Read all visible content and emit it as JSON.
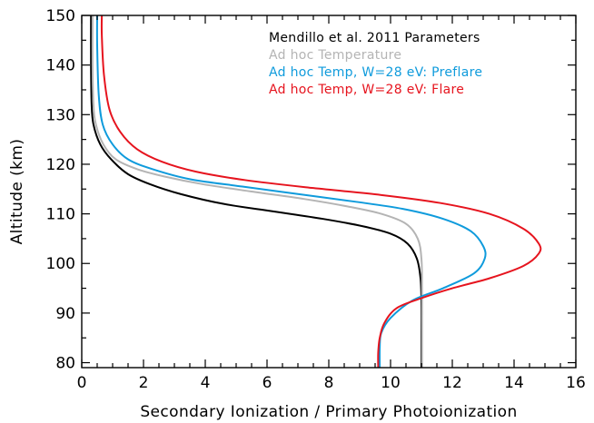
{
  "chart_data": {
    "type": "line",
    "xlabel": "Secondary Ionization / Primary Photoionization",
    "ylabel": "Altitude (km)",
    "xlim": [
      0,
      16
    ],
    "ylim": [
      79,
      150
    ],
    "xticks": [
      0,
      2,
      4,
      6,
      8,
      10,
      12,
      14,
      16
    ],
    "yticks": [
      80,
      90,
      100,
      110,
      120,
      130,
      140,
      150
    ],
    "legend_placement": "top-right",
    "series": [
      {
        "name": "Mendillo et al. 2011 Parameters",
        "color": "#000000",
        "points": [
          [
            0.3,
            150
          ],
          [
            0.3,
            140
          ],
          [
            0.32,
            132
          ],
          [
            0.38,
            128
          ],
          [
            0.6,
            124
          ],
          [
            0.95,
            121
          ],
          [
            1.5,
            118
          ],
          [
            2.2,
            116
          ],
          [
            3.2,
            114
          ],
          [
            4.6,
            112
          ],
          [
            6.2,
            110.5
          ],
          [
            7.8,
            109
          ],
          [
            9.1,
            107.5
          ],
          [
            10.0,
            106
          ],
          [
            10.55,
            104
          ],
          [
            10.85,
            101
          ],
          [
            10.97,
            97
          ],
          [
            11.0,
            92
          ],
          [
            11.0,
            85
          ],
          [
            11.0,
            79
          ]
        ]
      },
      {
        "name": "Ad hoc Temperature",
        "color": "#b4b4b4",
        "points": [
          [
            0.35,
            150
          ],
          [
            0.35,
            140
          ],
          [
            0.38,
            132
          ],
          [
            0.46,
            128
          ],
          [
            0.7,
            124
          ],
          [
            1.1,
            121
          ],
          [
            1.8,
            119
          ],
          [
            2.7,
            117.5
          ],
          [
            3.9,
            116
          ],
          [
            5.5,
            114.5
          ],
          [
            7.2,
            113
          ],
          [
            8.6,
            111.5
          ],
          [
            9.7,
            110
          ],
          [
            10.5,
            108
          ],
          [
            10.88,
            105
          ],
          [
            11.0,
            101
          ],
          [
            11.02,
            95
          ],
          [
            11.02,
            85
          ],
          [
            11.02,
            79
          ]
        ]
      },
      {
        "name": "Ad hoc Temp, W=28 eV: Preflare",
        "color": "#0f9bdc",
        "points": [
          [
            0.5,
            150
          ],
          [
            0.5,
            144
          ],
          [
            0.55,
            134
          ],
          [
            0.68,
            128
          ],
          [
            1.0,
            124
          ],
          [
            1.5,
            121
          ],
          [
            2.3,
            119
          ],
          [
            3.5,
            117
          ],
          [
            5.2,
            115.5
          ],
          [
            7.0,
            114
          ],
          [
            8.8,
            112.5
          ],
          [
            10.4,
            111
          ],
          [
            11.7,
            109
          ],
          [
            12.6,
            106.5
          ],
          [
            13.0,
            103.5
          ],
          [
            13.05,
            101
          ],
          [
            12.7,
            98
          ],
          [
            11.7,
            95
          ],
          [
            10.7,
            92.5
          ],
          [
            10.0,
            89
          ],
          [
            9.7,
            86
          ],
          [
            9.65,
            83
          ],
          [
            9.65,
            79
          ]
        ]
      },
      {
        "name": "Ad hoc Temp, W=28 eV: Flare",
        "color": "#e6141e",
        "points": [
          [
            0.65,
            150
          ],
          [
            0.65,
            146
          ],
          [
            0.72,
            138
          ],
          [
            0.9,
            131
          ],
          [
            1.25,
            126.5
          ],
          [
            1.8,
            123
          ],
          [
            2.6,
            120.5
          ],
          [
            3.7,
            118.5
          ],
          [
            5.3,
            116.8
          ],
          [
            7.5,
            115.2
          ],
          [
            9.7,
            113.8
          ],
          [
            11.6,
            112.2
          ],
          [
            13.2,
            110
          ],
          [
            14.3,
            107
          ],
          [
            14.8,
            104
          ],
          [
            14.8,
            102
          ],
          [
            14.3,
            99.5
          ],
          [
            13.2,
            97
          ],
          [
            12.0,
            95
          ],
          [
            11.0,
            93
          ],
          [
            10.2,
            91
          ],
          [
            9.8,
            88
          ],
          [
            9.65,
            85
          ],
          [
            9.6,
            82
          ],
          [
            9.6,
            79
          ]
        ]
      }
    ]
  }
}
